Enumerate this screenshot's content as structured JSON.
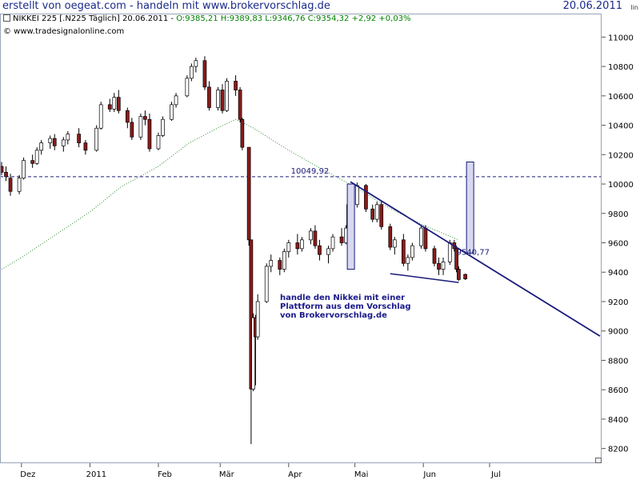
{
  "header": {
    "title": "erstellt von oegeat.com - handeln mit www.brokervorschlag.de",
    "date": "20.06.2011",
    "scale_label": "lin"
  },
  "info": {
    "instrument": "NIKKEI 225 [.N225 Täglich] 20.06.2011",
    "ohlc": "O:9385,21 H:9389,83 L:9346,76 C:9354,32 +2,92 +0,03%",
    "source": "© www.tradesignalonline.com"
  },
  "annotation": {
    "text": "handle den Nikkei mit einer\nPlattform aus dem Vorschlag\nvon Brokervorschlag.de"
  },
  "colors": {
    "up_candle": "#ffffff",
    "down_candle": "#8b1a1a",
    "moving_average": "#2e8b2e",
    "trendline": "#1a1a7a",
    "reference_line": "#1a1a7a",
    "box_fill": "#d8d8f0",
    "header_text": "#1a2a8a",
    "ohlc_text": "#008000"
  },
  "chart_data": {
    "type": "candlestick",
    "title": "NIKKEI 225 [.N225 Täglich] 20.06.2011",
    "ylim": [
      8100,
      11100
    ],
    "y_ticks": [
      8200,
      8400,
      8600,
      8800,
      9000,
      9200,
      9400,
      9600,
      9800,
      10000,
      10200,
      10400,
      10600,
      10800,
      11000
    ],
    "x_labels": [
      "Dez",
      "2011",
      "Feb",
      "Mär",
      "Apr",
      "Mai",
      "Jun",
      "Jul"
    ],
    "x_range": [
      "2010-11-22",
      "2011-08-20"
    ],
    "x_ticks": [
      "2010-12-01",
      "2011-01-01",
      "2011-02-01",
      "2011-03-01",
      "2011-04-01",
      "2011-05-01",
      "2011-06-01",
      "2011-07-01"
    ],
    "reference_line": {
      "value": 10049.92,
      "label": "10049,92"
    },
    "trendline": {
      "from": [
        "2011-04-29",
        10015
      ],
      "to": [
        "2011-08-20",
        8965
      ],
      "label": "9540,77",
      "label_value": 9540.77
    },
    "lower_trendline": {
      "from": [
        "2011-05-17",
        9390
      ],
      "to": [
        "2011-06-17",
        9330
      ]
    },
    "boxes": [
      {
        "x": "2011-04-29",
        "from": 9420,
        "to": 10000
      },
      {
        "x": "2011-06-22",
        "from": 9530,
        "to": 10150
      }
    ],
    "moving_average": [
      [
        "2010-11-22",
        9420
      ],
      [
        "2010-12-01",
        9500
      ],
      [
        "2010-12-15",
        9640
      ],
      [
        "2011-01-01",
        9810
      ],
      [
        "2011-01-15",
        9980
      ],
      [
        "2011-02-01",
        10120
      ],
      [
        "2011-02-15",
        10280
      ],
      [
        "2011-03-01",
        10390
      ],
      [
        "2011-03-08",
        10440
      ],
      [
        "2011-03-15",
        10390
      ],
      [
        "2011-04-01",
        10230
      ],
      [
        "2011-04-15",
        10110
      ],
      [
        "2011-05-01",
        9980
      ],
      [
        "2011-05-15",
        9850
      ],
      [
        "2011-06-01",
        9720
      ],
      [
        "2011-06-17",
        9620
      ]
    ],
    "candles": [
      [
        "2010-11-22",
        10120,
        10150,
        10060,
        10080
      ],
      [
        "2010-11-24",
        10080,
        10120,
        10020,
        10050
      ],
      [
        "2010-11-26",
        10040,
        10070,
        9920,
        9950
      ],
      [
        "2010-11-30",
        9950,
        10060,
        9930,
        10040
      ],
      [
        "2010-12-02",
        10040,
        10180,
        10030,
        10160
      ],
      [
        "2010-12-06",
        10160,
        10200,
        10110,
        10140
      ],
      [
        "2010-12-08",
        10140,
        10250,
        10130,
        10230
      ],
      [
        "2010-12-10",
        10230,
        10300,
        10200,
        10280
      ],
      [
        "2010-12-14",
        10280,
        10330,
        10240,
        10310
      ],
      [
        "2010-12-16",
        10310,
        10340,
        10230,
        10260
      ],
      [
        "2010-12-20",
        10260,
        10320,
        10220,
        10300
      ],
      [
        "2010-12-22",
        10300,
        10360,
        10270,
        10340
      ],
      [
        "2010-12-27",
        10340,
        10380,
        10250,
        10280
      ],
      [
        "2010-12-30",
        10280,
        10300,
        10200,
        10230
      ],
      [
        "2011-01-04",
        10230,
        10400,
        10220,
        10380
      ],
      [
        "2011-01-06",
        10380,
        10560,
        10370,
        10540
      ],
      [
        "2011-01-10",
        10540,
        10580,
        10490,
        10510
      ],
      [
        "2011-01-12",
        10510,
        10620,
        10490,
        10590
      ],
      [
        "2011-01-14",
        10590,
        10640,
        10480,
        10500
      ],
      [
        "2011-01-18",
        10500,
        10520,
        10380,
        10420
      ],
      [
        "2011-01-20",
        10420,
        10450,
        10300,
        10320
      ],
      [
        "2011-01-24",
        10320,
        10480,
        10300,
        10460
      ],
      [
        "2011-01-26",
        10460,
        10500,
        10400,
        10440
      ],
      [
        "2011-01-28",
        10440,
        10480,
        10220,
        10240
      ],
      [
        "2011-02-01",
        10240,
        10350,
        10230,
        10330
      ],
      [
        "2011-02-03",
        10330,
        10460,
        10320,
        10440
      ],
      [
        "2011-02-07",
        10440,
        10560,
        10430,
        10540
      ],
      [
        "2011-02-09",
        10540,
        10620,
        10520,
        10600
      ],
      [
        "2011-02-14",
        10600,
        10740,
        10590,
        10720
      ],
      [
        "2011-02-16",
        10720,
        10820,
        10700,
        10800
      ],
      [
        "2011-02-18",
        10800,
        10860,
        10760,
        10840
      ],
      [
        "2011-02-22",
        10840,
        10870,
        10640,
        10660
      ],
      [
        "2011-02-24",
        10660,
        10700,
        10500,
        10520
      ],
      [
        "2011-02-28",
        10520,
        10660,
        10500,
        10640
      ],
      [
        "2011-03-02",
        10640,
        10680,
        10480,
        10500
      ],
      [
        "2011-03-04",
        10500,
        10720,
        10490,
        10700
      ],
      [
        "2011-03-08",
        10700,
        10740,
        10600,
        10640
      ],
      [
        "2011-03-10",
        10640,
        10660,
        10420,
        10440
      ],
      [
        "2011-03-11",
        10440,
        10450,
        10230,
        10250
      ],
      [
        "2011-03-14",
        10250,
        10250,
        9580,
        9620
      ],
      [
        "2011-03-15",
        9620,
        9620,
        8230,
        8605
      ],
      [
        "2011-03-16",
        8605,
        9120,
        8590,
        9090
      ],
      [
        "2011-03-17",
        9090,
        9110,
        8630,
        8960
      ],
      [
        "2011-03-18",
        8960,
        9250,
        8940,
        9200
      ],
      [
        "2011-03-22",
        9200,
        9460,
        9190,
        9440
      ],
      [
        "2011-03-24",
        9440,
        9520,
        9400,
        9480
      ],
      [
        "2011-03-28",
        9480,
        9500,
        9380,
        9420
      ],
      [
        "2011-03-30",
        9420,
        9560,
        9400,
        9540
      ],
      [
        "2011-04-01",
        9540,
        9620,
        9500,
        9600
      ],
      [
        "2011-04-05",
        9600,
        9660,
        9520,
        9560
      ],
      [
        "2011-04-07",
        9560,
        9640,
        9540,
        9620
      ],
      [
        "2011-04-11",
        9620,
        9700,
        9590,
        9680
      ],
      [
        "2011-04-13",
        9680,
        9720,
        9560,
        9580
      ],
      [
        "2011-04-15",
        9580,
        9620,
        9480,
        9520
      ],
      [
        "2011-04-19",
        9520,
        9580,
        9460,
        9560
      ],
      [
        "2011-04-21",
        9560,
        9660,
        9540,
        9640
      ],
      [
        "2011-04-25",
        9640,
        9700,
        9580,
        9600
      ],
      [
        "2011-04-27",
        9600,
        9720,
        9590,
        9700
      ],
      [
        "2011-04-28",
        9700,
        9880,
        9690,
        9860
      ],
      [
        "2011-05-02",
        9860,
        10010,
        9840,
        9990
      ],
      [
        "2011-05-06",
        9990,
        10000,
        9810,
        9830
      ],
      [
        "2011-05-09",
        9830,
        9860,
        9740,
        9760
      ],
      [
        "2011-05-11",
        9760,
        9880,
        9740,
        9860
      ],
      [
        "2011-05-13",
        9860,
        9880,
        9690,
        9710
      ],
      [
        "2011-05-17",
        9710,
        9730,
        9550,
        9570
      ],
      [
        "2011-05-19",
        9570,
        9640,
        9520,
        9620
      ],
      [
        "2011-05-23",
        9620,
        9660,
        9440,
        9460
      ],
      [
        "2011-05-25",
        9460,
        9520,
        9410,
        9500
      ],
      [
        "2011-05-27",
        9500,
        9600,
        9480,
        9580
      ],
      [
        "2011-05-31",
        9580,
        9720,
        9560,
        9700
      ],
      [
        "2011-06-02",
        9700,
        9720,
        9540,
        9560
      ],
      [
        "2011-06-06",
        9560,
        9580,
        9440,
        9460
      ],
      [
        "2011-06-08",
        9460,
        9500,
        9380,
        9420
      ],
      [
        "2011-06-10",
        9420,
        9500,
        9380,
        9470
      ],
      [
        "2011-06-13",
        9470,
        9620,
        9450,
        9600
      ],
      [
        "2011-06-15",
        9600,
        9620,
        9540,
        9560
      ],
      [
        "2011-06-16",
        9560,
        9580,
        9400,
        9420
      ],
      [
        "2011-06-17",
        9420,
        9440,
        9340,
        9350
      ],
      [
        "2011-06-20",
        9385.21,
        9389.83,
        9346.76,
        9354.32
      ]
    ]
  }
}
